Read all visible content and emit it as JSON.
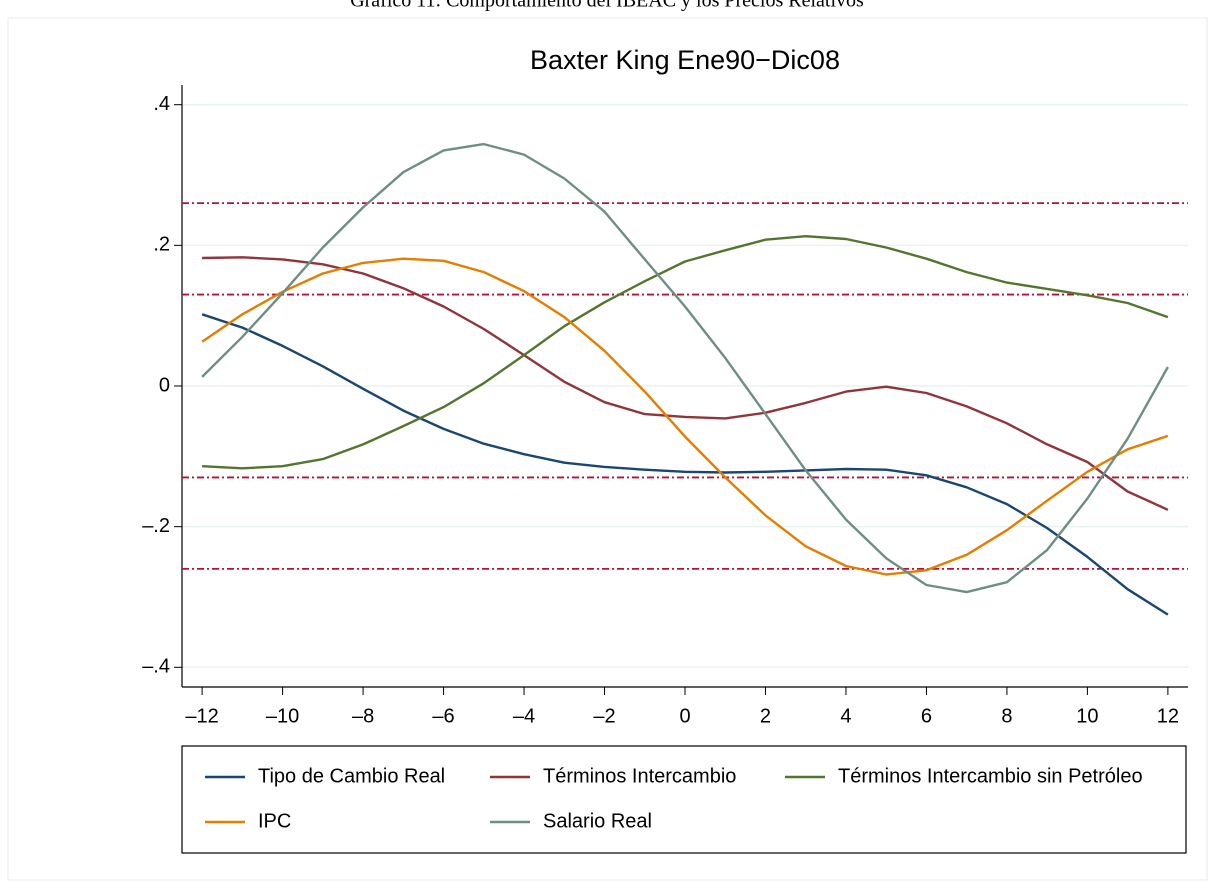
{
  "chart_data": {
    "type": "line",
    "caption": "Gráfico 11: Comportamiento del IBEAC y los Precios Relativos",
    "title": "Baxter King Ene90−Dic08",
    "x": [
      -12,
      -11,
      -10,
      -9,
      -8,
      -7,
      -6,
      -5,
      -4,
      -3,
      -2,
      -1,
      0,
      1,
      2,
      3,
      4,
      5,
      6,
      7,
      8,
      9,
      10,
      11,
      12
    ],
    "xlim": [
      -12.5,
      12.5
    ],
    "xticks": [
      {
        "value": -12,
        "label": "–12"
      },
      {
        "value": -10,
        "label": "–10"
      },
      {
        "value": -8,
        "label": "–8"
      },
      {
        "value": -6,
        "label": "–6"
      },
      {
        "value": -4,
        "label": "–4"
      },
      {
        "value": -2,
        "label": "–2"
      },
      0,
      2,
      4,
      6,
      8,
      10,
      12
    ],
    "ylim": [
      -0.428,
      0.428
    ],
    "yticks": [
      {
        "value": 0.4,
        "label": ".4"
      },
      {
        "value": 0.2,
        "label": ".2"
      },
      0,
      {
        "value": -0.2,
        "label": "–.2"
      },
      {
        "value": -0.4,
        "label": "–.4"
      }
    ],
    "grid": true,
    "reference_lines": {
      "values": [
        0.26,
        0.13,
        -0.13,
        -0.26
      ],
      "color": "#b5123a"
    },
    "series": [
      {
        "name": "Tipo de Cambio Real",
        "color": "#1a476f",
        "values": [
          0.102,
          0.083,
          0.057,
          0.028,
          -0.004,
          -0.035,
          -0.061,
          -0.082,
          -0.097,
          -0.109,
          -0.115,
          -0.119,
          -0.122,
          -0.123,
          -0.122,
          -0.12,
          -0.118,
          -0.119,
          -0.127,
          -0.144,
          -0.168,
          -0.202,
          -0.243,
          -0.289,
          -0.325
        ]
      },
      {
        "name": "Términos Intercambio",
        "color": "#90353b",
        "values": [
          0.182,
          0.183,
          0.18,
          0.173,
          0.16,
          0.139,
          0.113,
          0.081,
          0.044,
          0.006,
          -0.023,
          -0.04,
          -0.044,
          -0.046,
          -0.038,
          -0.024,
          -0.008,
          -0.001,
          -0.01,
          -0.029,
          -0.053,
          -0.083,
          -0.108,
          -0.15,
          -0.176
        ]
      },
      {
        "name": "Términos Intercambio sin Petróleo",
        "color": "#55752f",
        "values": [
          -0.114,
          -0.117,
          -0.114,
          -0.104,
          -0.083,
          -0.057,
          -0.03,
          0.004,
          0.044,
          0.085,
          0.119,
          0.149,
          0.177,
          0.193,
          0.208,
          0.213,
          0.209,
          0.197,
          0.181,
          0.162,
          0.147,
          0.138,
          0.129,
          0.118,
          0.098
        ]
      },
      {
        "name": "IPC",
        "color": "#e37e00",
        "values": [
          0.063,
          0.102,
          0.134,
          0.16,
          0.175,
          0.181,
          0.178,
          0.162,
          0.135,
          0.098,
          0.05,
          -0.008,
          -0.072,
          -0.13,
          -0.184,
          -0.228,
          -0.256,
          -0.268,
          -0.262,
          -0.24,
          -0.205,
          -0.163,
          -0.122,
          -0.09,
          -0.071
        ]
      },
      {
        "name": "Salario Real",
        "color": "#6e8e84",
        "values": [
          0.013,
          0.07,
          0.132,
          0.197,
          0.254,
          0.304,
          0.335,
          0.344,
          0.329,
          0.295,
          0.248,
          0.18,
          0.113,
          0.04,
          -0.04,
          -0.12,
          -0.19,
          -0.245,
          -0.283,
          -0.293,
          -0.279,
          -0.233,
          -0.16,
          -0.075,
          0.027
        ]
      }
    ]
  }
}
